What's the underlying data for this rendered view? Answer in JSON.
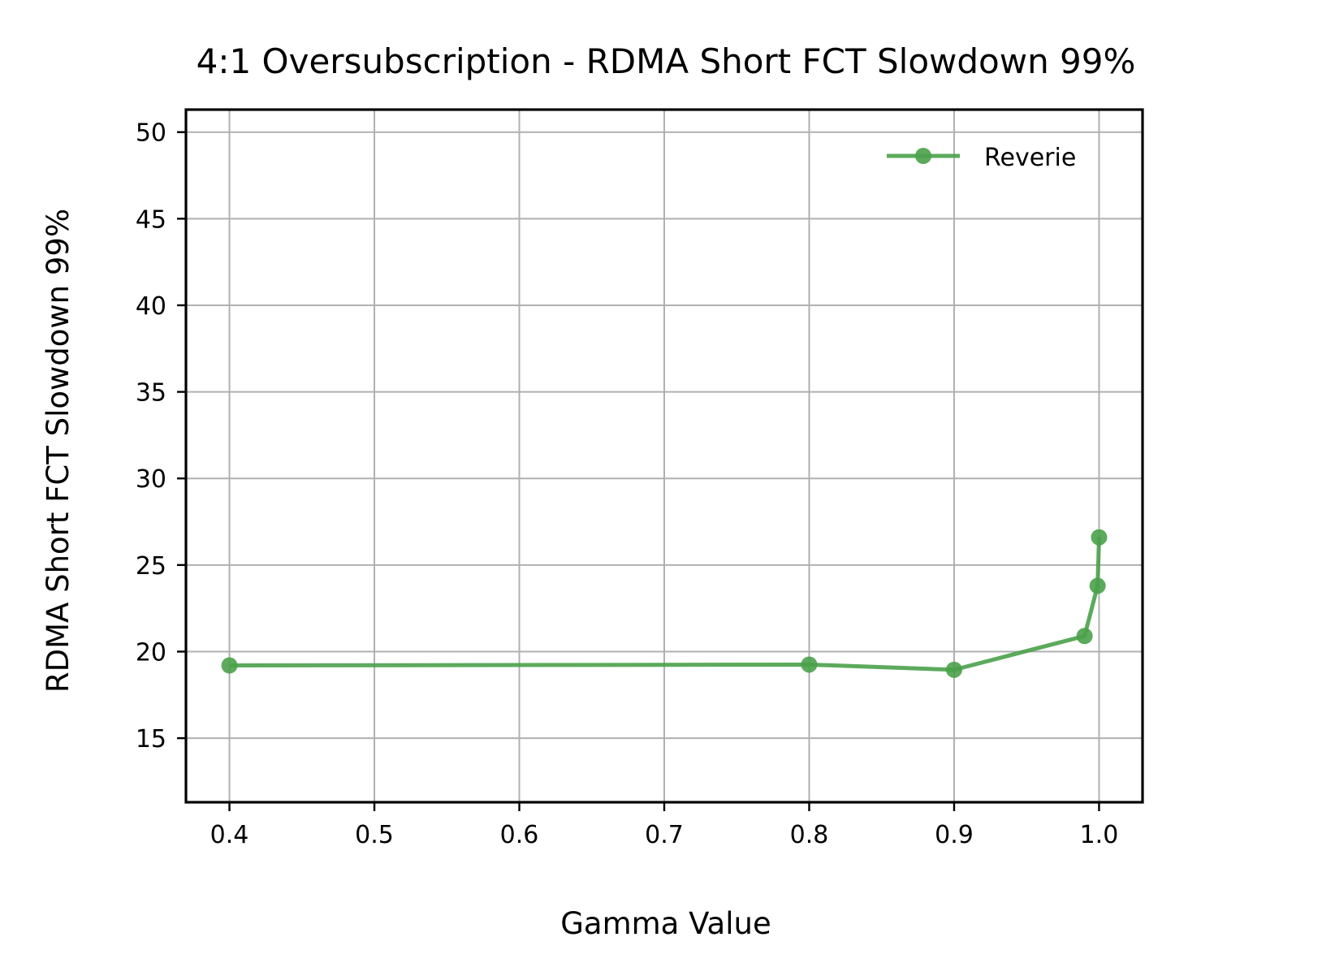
{
  "chart_data": {
    "type": "line",
    "title": "4:1 Oversubscription - RDMA Short FCT Slowdown 99%",
    "xlabel": "Gamma Value",
    "ylabel": "RDMA Short FCT Slowdown 99%",
    "xlim": [
      0.37,
      1.03
    ],
    "ylim": [
      11.3,
      51.3
    ],
    "xticks": [
      0.4,
      0.5,
      0.6,
      0.7,
      0.8,
      0.9,
      1.0
    ],
    "xtick_labels": [
      "0.4",
      "0.5",
      "0.6",
      "0.7",
      "0.8",
      "0.9",
      "1.0"
    ],
    "yticks": [
      15,
      20,
      25,
      30,
      35,
      40,
      45,
      50
    ],
    "ytick_labels": [
      "15",
      "20",
      "25",
      "30",
      "35",
      "40",
      "45",
      "50"
    ],
    "grid": true,
    "legend_position": "top-right",
    "series": [
      {
        "name": "Reverie",
        "color": "#4aa14a",
        "marker": "circle",
        "x": [
          0.4,
          0.8,
          0.9,
          0.99,
          0.999,
          1.0
        ],
        "y": [
          19.2,
          19.25,
          18.95,
          20.9,
          23.8,
          26.6
        ]
      }
    ]
  }
}
